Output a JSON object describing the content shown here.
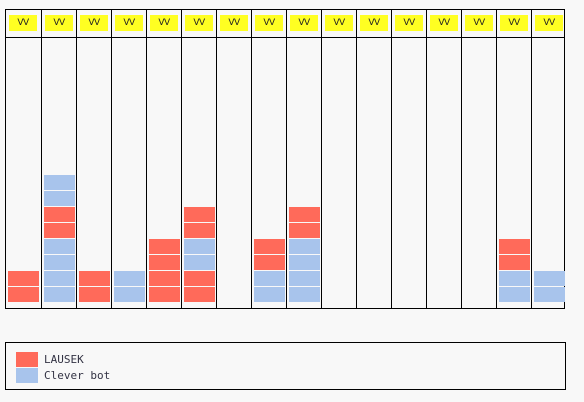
{
  "board": {
    "columns": [
      {
        "tag": "VV",
        "blocks": [
          "red",
          "red"
        ]
      },
      {
        "tag": "VV",
        "blocks": [
          "blue",
          "blue",
          "blue",
          "blue",
          "red",
          "red",
          "blue",
          "blue"
        ]
      },
      {
        "tag": "VV",
        "blocks": [
          "red",
          "red"
        ]
      },
      {
        "tag": "VV",
        "blocks": [
          "blue",
          "blue"
        ]
      },
      {
        "tag": "VV",
        "blocks": [
          "red",
          "red",
          "red",
          "red"
        ]
      },
      {
        "tag": "VV",
        "blocks": [
          "red",
          "red",
          "blue",
          "blue",
          "red",
          "red"
        ]
      },
      {
        "tag": "VV",
        "blocks": []
      },
      {
        "tag": "VV",
        "blocks": [
          "blue",
          "blue",
          "red",
          "red"
        ]
      },
      {
        "tag": "VV",
        "blocks": [
          "blue",
          "blue",
          "blue",
          "blue",
          "red",
          "red"
        ]
      },
      {
        "tag": "VV",
        "blocks": []
      },
      {
        "tag": "VV",
        "blocks": []
      },
      {
        "tag": "VV",
        "blocks": []
      },
      {
        "tag": "VV",
        "blocks": []
      },
      {
        "tag": "VV",
        "blocks": []
      },
      {
        "tag": "VV",
        "blocks": [
          "blue",
          "blue",
          "red",
          "red"
        ]
      },
      {
        "tag": "VV",
        "blocks": [
          "blue",
          "blue"
        ]
      }
    ]
  },
  "legend": {
    "items": [
      {
        "label": "LAUSEK",
        "color": "#ff6a5a"
      },
      {
        "label": "Clever bot",
        "color": "#a8c4ec"
      }
    ]
  },
  "colors": {
    "red": "#ff6a5a",
    "blue": "#a8c4ec",
    "tag": "#ffff22"
  }
}
